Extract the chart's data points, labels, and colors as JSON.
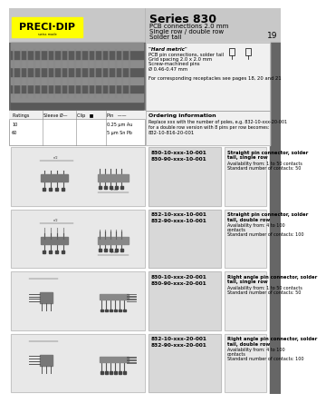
{
  "bg_color": "#ffffff",
  "header_bg": "#c8c8c8",
  "logo_bg": "#ffff00",
  "logo_text": "PRECI·DIP",
  "series_title": "Series 830",
  "series_subtitle1": "PCB connections 2.0 mm",
  "series_subtitle2": "Single row / double row",
  "series_subtitle3": "Solder tail",
  "page_number": "19",
  "hard_metric_title": "\"Hard metric\"",
  "hard_metric_lines": [
    "PCB pin connections, solder tail",
    "Grid spacing 2.0 x 2.0 mm",
    "Screw-machined pins",
    "Ø 0.46-0.47 mm",
    "",
    "For corresponding receptacles see pages 18, 20 and 21"
  ],
  "table_headers": [
    "Platings",
    "Sleeve Ø—",
    "Clip   ■",
    "Pin   ——"
  ],
  "table_row1": [
    "10",
    "",
    "",
    "0.25 µm Au"
  ],
  "table_row2": [
    "60",
    "",
    "",
    "5 µm Sn Pb"
  ],
  "ordering_title": "Ordering information",
  "ordering_text1": "Replace xxx with the number of poles, e.g. 832-10-xxx-20-001",
  "ordering_text2": "for a double row version with 8 pins per row becomes:",
  "ordering_text3": "832-10-816-20-001",
  "sections": [
    {
      "part1": "830-10-xxx-10-001",
      "part2": "830-90-xxx-10-001",
      "desc_bold": "Straight pin connector, solder\ntail, single row",
      "desc_lines": [
        "Availability from: 1 to 50 contacts",
        "Standard number of contacts: 50"
      ]
    },
    {
      "part1": "832-10-xxx-10-001",
      "part2": "832-90-xxx-10-001",
      "desc_bold": "Straight pin connector, solder\ntail, double row",
      "desc_lines": [
        "Availability from: 4 to 100",
        "contacts",
        "Standard number of contacts: 100"
      ]
    },
    {
      "part1": "830-10-xxx-20-001",
      "part2": "830-90-xxx-20-001",
      "desc_bold": "Right angle pin connector, solder\ntail, single row",
      "desc_lines": [
        "Availability from: 1 to 50 contacts",
        "Standard number of contacts: 50"
      ]
    },
    {
      "part1": "832-10-xxx-20-001",
      "part2": "832-90-xxx-20-001",
      "desc_bold": "Right angle pin connector, solder\ntail, double row",
      "desc_lines": [
        "Availability from: 4 to 100",
        "contacts",
        "Standard number of contacts: 100"
      ]
    }
  ],
  "sidebar_color": "#666666",
  "photo_color": "#999999",
  "diagram_bg": "#e8e8e8",
  "mid_panel_bg": "#d8d8d8",
  "right_panel_bg": "#e8e8e8"
}
